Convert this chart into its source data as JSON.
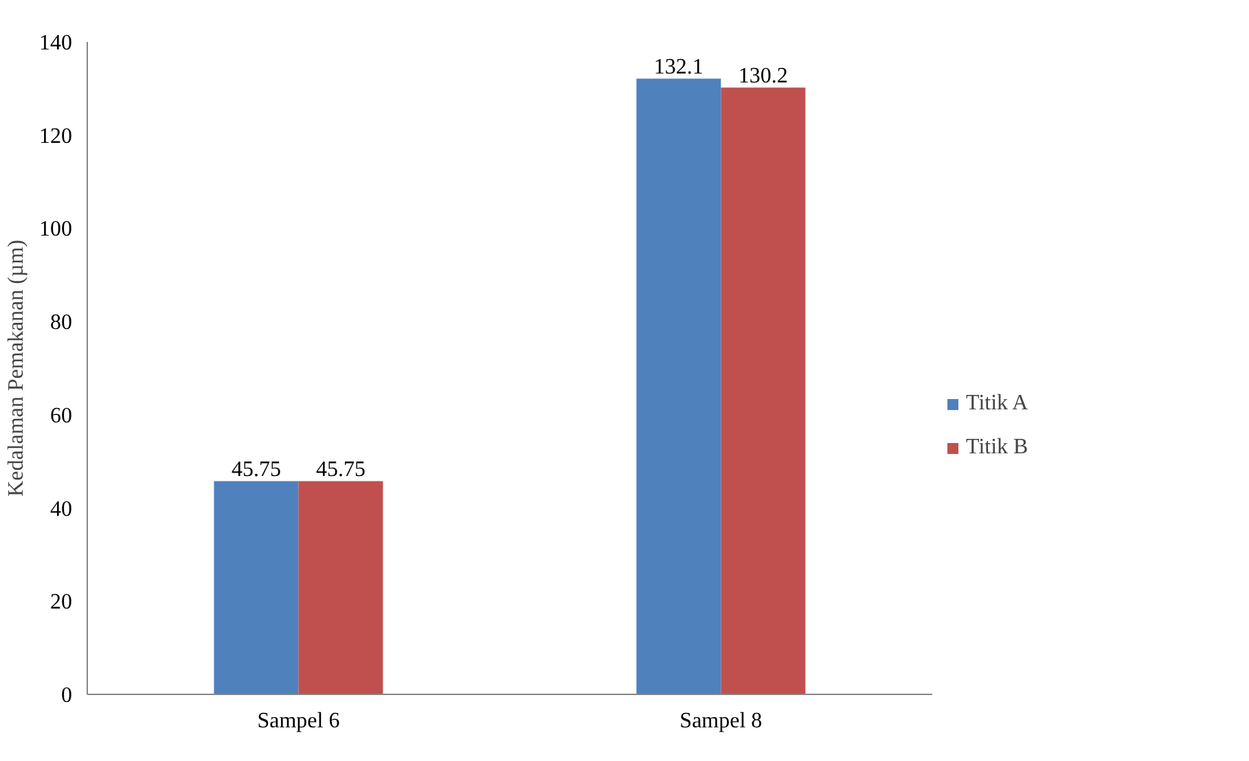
{
  "chart_data": {
    "type": "bar",
    "ylabel": "Kedalaman Pemakanan (µm)",
    "categories": [
      "Sampel 6",
      "Sampel 8"
    ],
    "series": [
      {
        "name": "Titik A",
        "color": "#4f81bd",
        "values": [
          45.75,
          132.1
        ]
      },
      {
        "name": "Titik B",
        "color": "#c0504d",
        "values": [
          45.75,
          130.2
        ]
      }
    ],
    "ylim": [
      0,
      140
    ],
    "yticks": [
      0,
      20,
      40,
      60,
      80,
      100,
      120,
      140
    ],
    "data_labels": true,
    "grid": false,
    "legend": "right"
  }
}
